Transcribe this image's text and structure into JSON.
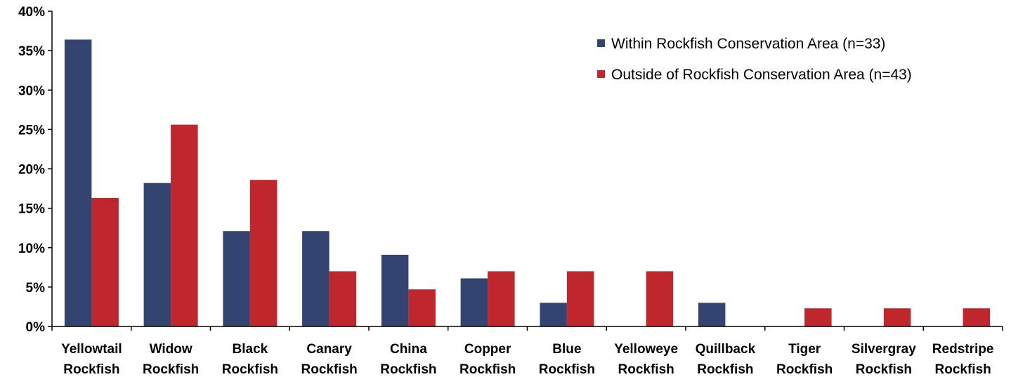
{
  "chart_data": {
    "type": "bar",
    "categories": [
      [
        "Yellowtail",
        "Rockfish"
      ],
      [
        "Widow",
        "Rockfish"
      ],
      [
        "Black",
        "Rockfish"
      ],
      [
        "Canary",
        "Rockfish"
      ],
      [
        "China",
        "Rockfish"
      ],
      [
        "Copper",
        "Rockfish"
      ],
      [
        "Blue",
        "Rockfish"
      ],
      [
        "Yelloweye",
        "Rockfish"
      ],
      [
        "Quillback",
        "Rockfish"
      ],
      [
        "Tiger",
        "Rockfish"
      ],
      [
        "Silvergray",
        "Rockfish"
      ],
      [
        "Redstripe",
        "Rockfish"
      ]
    ],
    "series": [
      {
        "name": "Within Rockfish Conservation Area (n=33)",
        "color": "#334470",
        "values": [
          36.4,
          18.2,
          12.1,
          12.1,
          9.1,
          6.1,
          3.0,
          0,
          3.0,
          0,
          0,
          0
        ]
      },
      {
        "name": "Outside of Rockfish Conservation Area (n=43)",
        "color": "#C0272D",
        "values": [
          16.3,
          25.6,
          18.6,
          7.0,
          4.7,
          7.0,
          7.0,
          7.0,
          0,
          2.3,
          2.3,
          2.3
        ]
      }
    ],
    "ylim": [
      0,
      40
    ],
    "yticks": [
      0,
      5,
      10,
      15,
      20,
      25,
      30,
      35,
      40
    ],
    "ytick_labels": [
      "0%",
      "5%",
      "10%",
      "15%",
      "20%",
      "25%",
      "30%",
      "35%",
      "40%"
    ],
    "title": "",
    "xlabel": "",
    "ylabel": "",
    "grid": false,
    "legend_position": "top-right"
  }
}
